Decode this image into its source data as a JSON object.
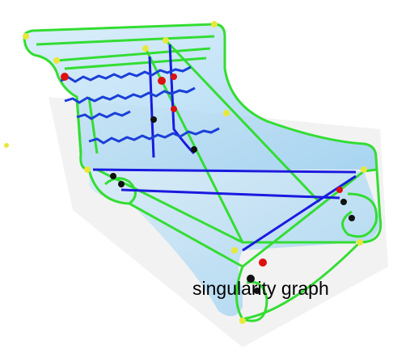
{
  "label": "singularity graph"
}
